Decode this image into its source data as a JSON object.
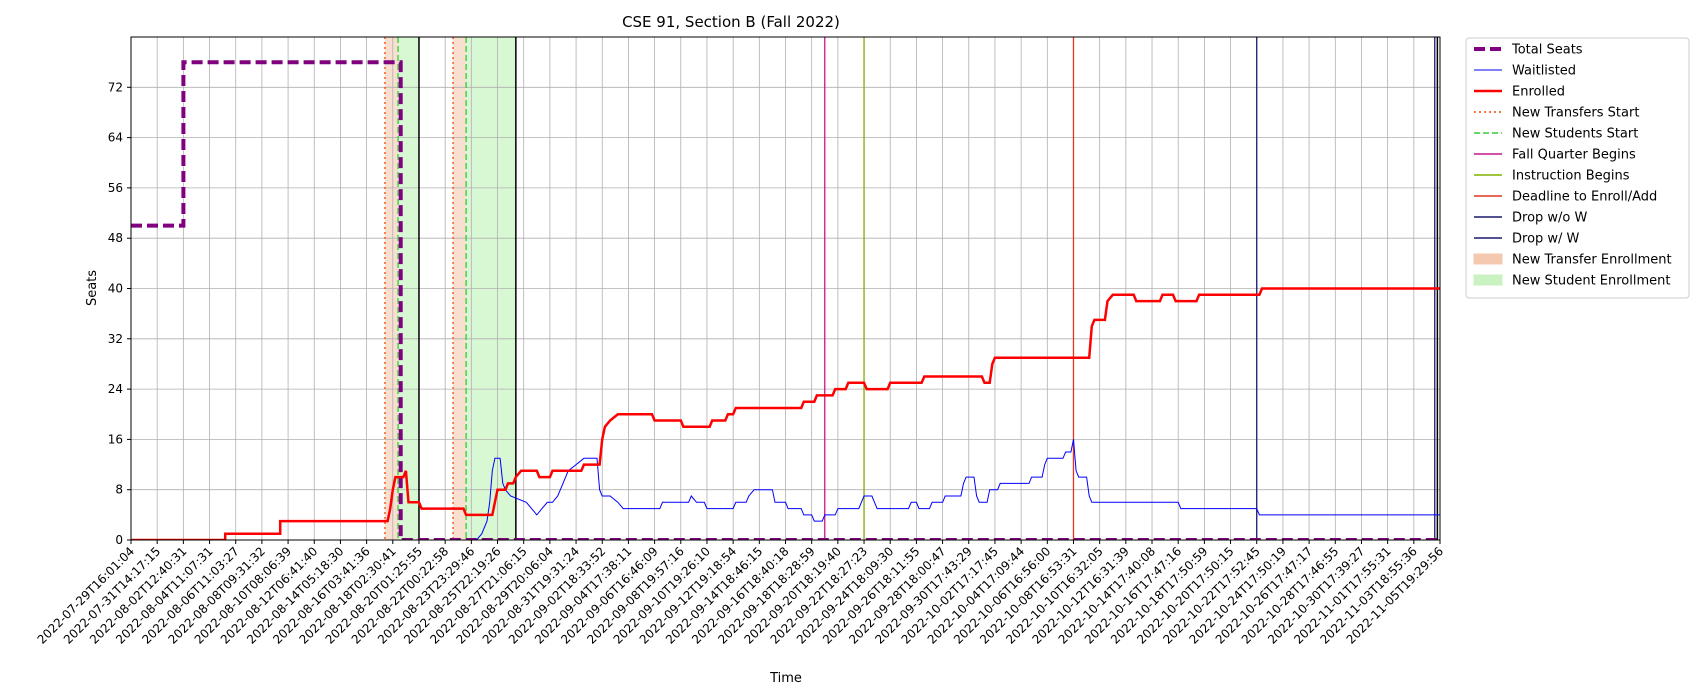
{
  "chart_data": {
    "type": "line",
    "title": "CSE 91, Section B (Fall 2022)",
    "xlabel": "Time",
    "ylabel": "Seats",
    "ylim": [
      0,
      80
    ],
    "yticks": [
      0,
      8,
      16,
      24,
      32,
      40,
      48,
      56,
      64,
      72
    ],
    "grid": true,
    "legend_position": "outside-right-top",
    "x_tick_labels": [
      "2022-07-29T16:01:04",
      "2022-07-31T14:17:15",
      "2022-08-02T12:40:31",
      "2022-08-04T11:07:31",
      "2022-08-06T11:03:27",
      "2022-08-08T09:31:32",
      "2022-08-10T08:06:39",
      "2022-08-12T06:41:40",
      "2022-08-14T05:18:30",
      "2022-08-16T03:41:36",
      "2022-08-18T02:30:41",
      "2022-08-20T01:25:55",
      "2022-08-22T00:22:58",
      "2022-08-23T23:29:46",
      "2022-08-25T22:19:26",
      "2022-08-27T21:06:15",
      "2022-08-29T20:06:04",
      "2022-08-31T19:31:24",
      "2022-09-02T18:33:52",
      "2022-09-04T17:38:11",
      "2022-09-06T16:46:09",
      "2022-09-08T19:57:16",
      "2022-09-10T19:26:10",
      "2022-09-12T19:18:54",
      "2022-09-14T18:46:15",
      "2022-09-16T18:40:18",
      "2022-09-18T18:28:59",
      "2022-09-20T18:19:40",
      "2022-09-22T18:27:23",
      "2022-09-24T18:09:30",
      "2022-09-26T18:11:55",
      "2022-09-28T18:00:47",
      "2022-09-30T17:43:29",
      "2022-10-02T17:17:45",
      "2022-10-04T17:09:44",
      "2022-10-06T16:56:00",
      "2022-10-08T16:53:31",
      "2022-10-10T16:32:05",
      "2022-10-12T16:31:39",
      "2022-10-14T17:40:08",
      "2022-10-16T17:47:16",
      "2022-10-18T17:50:59",
      "2022-10-20T17:50:15",
      "2022-10-22T17:52:45",
      "2022-10-24T17:50:19",
      "2022-10-26T17:47:17",
      "2022-10-28T17:46:55",
      "2022-10-30T17:39:27",
      "2022-11-01T17:55:31",
      "2022-11-03T18:55:36",
      "2022-11-05T19:29:56"
    ],
    "series": [
      {
        "name": "Total Seats",
        "color": "#800080",
        "style": "dashed-thick",
        "points": [
          [
            0,
            50
          ],
          [
            2,
            50
          ],
          [
            2,
            76
          ],
          [
            10.3,
            76
          ],
          [
            10.3,
            0
          ],
          [
            50,
            0
          ]
        ]
      },
      {
        "name": "Waitlisted",
        "color": "#0000ff",
        "style": "solid-thin",
        "points": [
          [
            0,
            0
          ],
          [
            10.3,
            0
          ],
          [
            10.3,
            0
          ],
          [
            13.2,
            0
          ],
          [
            13.4,
            1
          ],
          [
            13.6,
            3
          ],
          [
            13.7,
            6
          ],
          [
            13.8,
            11
          ],
          [
            13.9,
            13
          ],
          [
            14.1,
            13
          ],
          [
            14.2,
            9
          ],
          [
            14.3,
            8
          ],
          [
            14.5,
            7
          ],
          [
            15.1,
            6
          ],
          [
            15.3,
            5
          ],
          [
            15.5,
            4
          ],
          [
            15.7,
            5
          ],
          [
            15.9,
            6
          ],
          [
            16.1,
            6
          ],
          [
            16.3,
            7
          ],
          [
            16.5,
            9
          ],
          [
            16.7,
            11
          ],
          [
            17.0,
            12
          ],
          [
            17.3,
            13
          ],
          [
            17.8,
            13
          ],
          [
            17.9,
            8
          ],
          [
            18.0,
            7
          ],
          [
            18.3,
            7
          ],
          [
            18.6,
            6
          ],
          [
            18.8,
            5
          ],
          [
            20.2,
            5
          ],
          [
            20.3,
            6
          ],
          [
            21.3,
            6
          ],
          [
            21.4,
            7
          ],
          [
            21.6,
            6
          ],
          [
            21.9,
            6
          ],
          [
            22.0,
            5
          ],
          [
            23.0,
            5
          ],
          [
            23.1,
            6
          ],
          [
            23.5,
            6
          ],
          [
            23.6,
            7
          ],
          [
            23.8,
            8
          ],
          [
            24.5,
            8
          ],
          [
            24.6,
            6
          ],
          [
            25.0,
            6
          ],
          [
            25.1,
            5
          ],
          [
            25.6,
            5
          ],
          [
            25.7,
            4
          ],
          [
            26.0,
            4
          ],
          [
            26.1,
            3
          ],
          [
            26.4,
            3
          ],
          [
            26.5,
            4
          ],
          [
            26.9,
            4
          ],
          [
            27.0,
            5
          ],
          [
            27.8,
            5
          ],
          [
            27.9,
            6
          ],
          [
            28.0,
            7
          ],
          [
            28.3,
            7
          ],
          [
            28.4,
            6
          ],
          [
            28.5,
            5
          ],
          [
            29.7,
            5
          ],
          [
            29.8,
            6
          ],
          [
            30.0,
            6
          ],
          [
            30.1,
            5
          ],
          [
            30.5,
            5
          ],
          [
            30.6,
            6
          ],
          [
            31.0,
            6
          ],
          [
            31.1,
            7
          ],
          [
            31.7,
            7
          ],
          [
            31.8,
            9
          ],
          [
            31.9,
            10
          ],
          [
            32.2,
            10
          ],
          [
            32.3,
            7
          ],
          [
            32.4,
            6
          ],
          [
            32.7,
            6
          ],
          [
            32.8,
            8
          ],
          [
            33.1,
            8
          ],
          [
            33.2,
            9
          ],
          [
            34.3,
            9
          ],
          [
            34.4,
            10
          ],
          [
            34.8,
            10
          ],
          [
            34.9,
            12
          ],
          [
            35.0,
            13
          ],
          [
            35.6,
            13
          ],
          [
            35.7,
            14
          ],
          [
            35.9,
            14
          ],
          [
            36.0,
            16
          ],
          [
            36.1,
            11
          ],
          [
            36.2,
            10
          ],
          [
            36.5,
            10
          ],
          [
            36.6,
            7
          ],
          [
            36.7,
            6
          ],
          [
            40.0,
            6
          ],
          [
            40.1,
            5
          ],
          [
            43.0,
            5
          ],
          [
            43.1,
            4
          ],
          [
            50.3,
            4
          ],
          [
            50.4,
            3
          ],
          [
            52,
            3
          ]
        ]
      },
      {
        "name": "Enrolled",
        "color": "#ff0000",
        "style": "solid-thick",
        "points": [
          [
            0,
            0
          ],
          [
            3.6,
            0
          ],
          [
            3.6,
            1
          ],
          [
            5.7,
            1
          ],
          [
            5.7,
            3
          ],
          [
            9.8,
            3
          ],
          [
            9.9,
            5
          ],
          [
            10.0,
            8
          ],
          [
            10.1,
            10
          ],
          [
            10.4,
            10
          ],
          [
            10.5,
            11
          ],
          [
            10.6,
            6
          ],
          [
            11.0,
            6
          ],
          [
            11.1,
            5
          ],
          [
            12.7,
            5
          ],
          [
            12.8,
            4
          ],
          [
            13.3,
            4
          ],
          [
            13.4,
            4
          ],
          [
            13.8,
            4
          ],
          [
            13.9,
            6
          ],
          [
            14.0,
            8
          ],
          [
            14.3,
            8
          ],
          [
            14.4,
            9
          ],
          [
            14.6,
            9
          ],
          [
            14.7,
            10
          ],
          [
            14.9,
            11
          ],
          [
            15.5,
            11
          ],
          [
            15.6,
            10
          ],
          [
            16.0,
            10
          ],
          [
            16.1,
            11
          ],
          [
            17.2,
            11
          ],
          [
            17.3,
            12
          ],
          [
            17.9,
            12
          ],
          [
            18.0,
            16
          ],
          [
            18.1,
            18
          ],
          [
            18.3,
            19
          ],
          [
            18.6,
            20
          ],
          [
            19.9,
            20
          ],
          [
            20.0,
            19
          ],
          [
            21.0,
            19
          ],
          [
            21.1,
            18
          ],
          [
            22.1,
            18
          ],
          [
            22.2,
            19
          ],
          [
            22.7,
            19
          ],
          [
            22.8,
            20
          ],
          [
            23.0,
            20
          ],
          [
            23.1,
            21
          ],
          [
            25.6,
            21
          ],
          [
            25.7,
            22
          ],
          [
            26.1,
            22
          ],
          [
            26.2,
            23
          ],
          [
            26.8,
            23
          ],
          [
            26.9,
            24
          ],
          [
            27.3,
            24
          ],
          [
            27.4,
            25
          ],
          [
            28.0,
            25
          ],
          [
            28.1,
            24
          ],
          [
            28.9,
            24
          ],
          [
            29.0,
            25
          ],
          [
            30.2,
            25
          ],
          [
            30.3,
            26
          ],
          [
            32.5,
            26
          ],
          [
            32.6,
            25
          ],
          [
            32.8,
            25
          ],
          [
            32.9,
            28
          ],
          [
            33.0,
            29
          ],
          [
            36.6,
            29
          ],
          [
            36.7,
            34
          ],
          [
            36.8,
            35
          ],
          [
            37.2,
            35
          ],
          [
            37.3,
            38
          ],
          [
            37.5,
            39
          ],
          [
            38.3,
            39
          ],
          [
            38.4,
            38
          ],
          [
            39.3,
            38
          ],
          [
            39.4,
            39
          ],
          [
            39.8,
            39
          ],
          [
            39.9,
            38
          ],
          [
            40.7,
            38
          ],
          [
            40.8,
            39
          ],
          [
            43.1,
            39
          ],
          [
            43.2,
            40
          ],
          [
            52.9,
            40
          ],
          [
            53.0,
            41
          ],
          [
            58,
            41
          ]
        ]
      }
    ],
    "vertical_markers": [
      {
        "name": "New Transfers Start",
        "color": "#ff4500",
        "style": "dotted",
        "x": 9.7
      },
      {
        "name": "New Students Start",
        "color": "#32cd32",
        "style": "dashed",
        "x": 10.2
      },
      {
        "name": "Fall Quarter Begins",
        "color": "#c71585",
        "style": "solid",
        "x": 26.5
      },
      {
        "name": "Instruction Begins",
        "color": "#7fb000",
        "style": "solid",
        "x": 28.0
      },
      {
        "name": "Deadline to Enroll/Add",
        "color": "#e8341c",
        "style": "solid",
        "x": 36.0
      },
      {
        "name": "Drop w/o W",
        "color": "#191970",
        "style": "solid",
        "x": 43.0
      },
      {
        "name": "Drop w/ W",
        "color": "#191970",
        "style": "solid",
        "x": 49.8
      }
    ],
    "extra_markers": [
      {
        "color": "#ff4500",
        "style": "dotted",
        "x": 12.3
      },
      {
        "color": "#32cd32",
        "style": "dashed",
        "x": 12.8
      },
      {
        "color": "#000000",
        "style": "solid",
        "x": 11.0
      },
      {
        "color": "#000000",
        "style": "solid",
        "x": 14.7
      },
      {
        "color": "#000000",
        "style": "solid",
        "x": 49.9
      }
    ],
    "shaded_spans": [
      {
        "name": "New Transfer Enrollment",
        "color": "#f4c9b0",
        "alpha": 0.6,
        "spans": [
          [
            9.7,
            10.2
          ],
          [
            12.3,
            12.8
          ]
        ]
      },
      {
        "name": "New Student Enrollment",
        "color": "#90e880",
        "alpha": 0.35,
        "spans": [
          [
            10.2,
            11.0
          ],
          [
            12.8,
            14.7
          ]
        ]
      }
    ],
    "legend": [
      {
        "label": "Total Seats",
        "kind": "line",
        "color": "#800080",
        "style": "dashed-thick"
      },
      {
        "label": "Waitlisted",
        "kind": "line",
        "color": "#0000ff",
        "style": "solid-thin"
      },
      {
        "label": "Enrolled",
        "kind": "line",
        "color": "#ff0000",
        "style": "solid-thick"
      },
      {
        "label": "New Transfers Start",
        "kind": "line",
        "color": "#ff4500",
        "style": "dotted"
      },
      {
        "label": "New Students Start",
        "kind": "line",
        "color": "#32cd32",
        "style": "dashed"
      },
      {
        "label": "Fall Quarter Begins",
        "kind": "line",
        "color": "#c71585",
        "style": "solid"
      },
      {
        "label": "Instruction Begins",
        "kind": "line",
        "color": "#7fb000",
        "style": "solid"
      },
      {
        "label": "Deadline to Enroll/Add",
        "kind": "line",
        "color": "#e8341c",
        "style": "solid"
      },
      {
        "label": "Drop w/o W",
        "kind": "line",
        "color": "#191970",
        "style": "solid"
      },
      {
        "label": "Drop w/ W",
        "kind": "line",
        "color": "#191970",
        "style": "solid"
      },
      {
        "label": "New Transfer Enrollment",
        "kind": "patch",
        "color": "#f4c9b0"
      },
      {
        "label": "New Student Enrollment",
        "kind": "patch",
        "color": "#c8f2c0"
      }
    ]
  }
}
